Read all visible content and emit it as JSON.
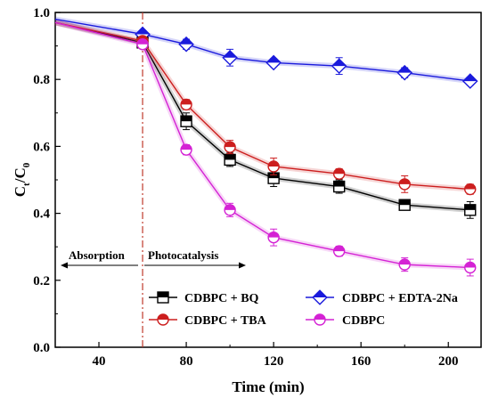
{
  "chart_data": {
    "type": "line",
    "xlabel": "Time (min)",
    "ylabel_main": "C",
    "ylabel_sub1": "t",
    "ylabel_sep": "/C",
    "ylabel_sub2": "0",
    "xlim": [
      20,
      215
    ],
    "ylim": [
      0.0,
      1.0
    ],
    "xticks": [
      "40",
      "80",
      "120",
      "160",
      "200"
    ],
    "xtick_values": [
      40,
      80,
      120,
      160,
      200
    ],
    "yticks": [
      "0.0",
      "0.2",
      "0.4",
      "0.6",
      "0.8",
      "1.0"
    ],
    "ytick_values": [
      0.0,
      0.2,
      0.4,
      0.6,
      0.8,
      1.0
    ],
    "divider_x": 60,
    "annotations": {
      "left": "Absorption",
      "right": "Photocatalysis"
    },
    "legend_placement": "bottom-right",
    "series": [
      {
        "name": "CDBPC + BQ",
        "marker": "square",
        "color": "#000000",
        "fill_top": "#000000",
        "x": [
          20,
          60,
          80,
          100,
          120,
          150,
          180,
          210
        ],
        "y": [
          0.97,
          0.91,
          0.675,
          0.56,
          0.505,
          0.48,
          0.425,
          0.41
        ],
        "err": [
          0,
          0.01,
          0.025,
          0.02,
          0.025,
          0.02,
          0.015,
          0.025
        ]
      },
      {
        "name": "CDBPC + EDTA-2Na",
        "marker": "diamond",
        "color": "#1a1adc",
        "fill_top": "#1a1adc",
        "x": [
          20,
          60,
          80,
          100,
          120,
          150,
          180,
          210
        ],
        "y": [
          0.98,
          0.935,
          0.905,
          0.865,
          0.85,
          0.84,
          0.82,
          0.795
        ],
        "err": [
          0,
          0.01,
          0.015,
          0.025,
          0.012,
          0.025,
          0.015,
          0.012
        ]
      },
      {
        "name": "CDBPC + TBA",
        "marker": "circle",
        "color": "#cc1e1e",
        "fill_top": "#cc1e1e",
        "x": [
          20,
          60,
          80,
          100,
          120,
          150,
          180,
          210
        ],
        "y": [
          0.97,
          0.915,
          0.725,
          0.598,
          0.54,
          0.518,
          0.487,
          0.472
        ],
        "err": [
          0,
          0.01,
          0.015,
          0.02,
          0.025,
          0.015,
          0.025,
          0.015
        ]
      },
      {
        "name": "CDBPC",
        "marker": "circle",
        "color": "#d422d4",
        "fill_top": "#d422d4",
        "x": [
          20,
          60,
          80,
          100,
          120,
          150,
          180,
          210
        ],
        "y": [
          0.97,
          0.905,
          0.59,
          0.41,
          0.328,
          0.287,
          0.247,
          0.238
        ],
        "err": [
          0,
          0.01,
          0.015,
          0.02,
          0.025,
          0.015,
          0.02,
          0.025
        ]
      }
    ]
  }
}
